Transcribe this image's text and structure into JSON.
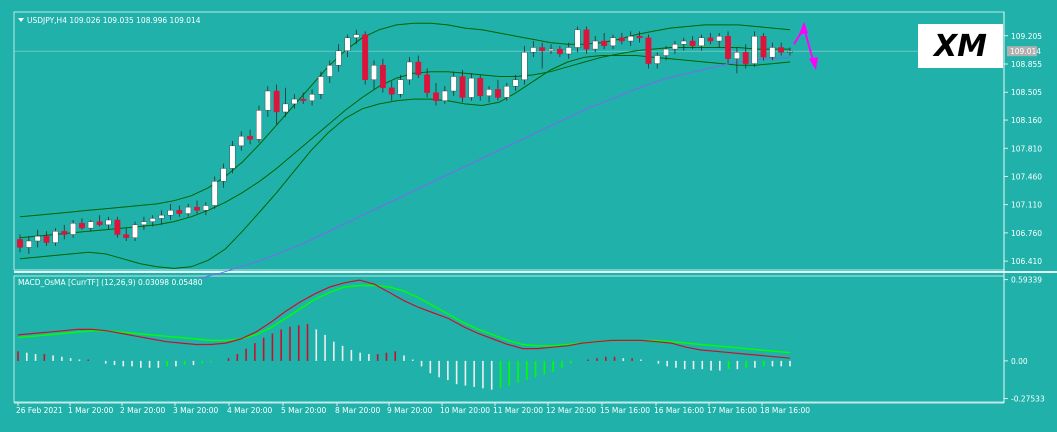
{
  "header": {
    "symbol_line": "USDJPY,H4  109.026 109.035 108.996 109.014",
    "indicator_line": "MACD_OsMA [CurrTF] (12,26,9) 0.03098 0.05480"
  },
  "logo": {
    "text": "XM"
  },
  "colors": {
    "background": "#20b2aa",
    "bull": "#ffffff",
    "bear": "#dc143c",
    "bands": "#006400",
    "ma": "#7b68ee",
    "macd": "#c8102e",
    "signal": "#00ff00",
    "arrow": "#ff00ff"
  },
  "chart_data": [
    {
      "type": "candlestick",
      "symbol": "USDJPY,H4",
      "ohlc_readout": [
        109.026,
        109.035,
        108.996,
        109.014
      ],
      "current_price": "109.014",
      "y_ticks": [
        "109.205",
        "108.855",
        "108.505",
        "108.160",
        "107.810",
        "107.460",
        "107.110",
        "106.760",
        "106.410"
      ],
      "ylim": [
        106.3,
        109.5
      ],
      "x_ticks": [
        "26 Feb 2021",
        "1 Mar 20:00",
        "2 Mar 20:00",
        "3 Mar 20:00",
        "4 Mar 20:00",
        "5 Mar 20:00",
        "8 Mar 20:00",
        "9 Mar 20:00",
        "10 Mar 20:00",
        "11 Mar 20:00",
        "12 Mar 20:00",
        "15 Mar 16:00",
        "16 Mar 16:00",
        "17 Mar 16:00",
        "18 Mar 16:00"
      ],
      "candles": [
        {
          "o": 106.68,
          "h": 106.74,
          "l": 106.52,
          "c": 106.58
        },
        {
          "o": 106.58,
          "h": 106.72,
          "l": 106.5,
          "c": 106.66
        },
        {
          "o": 106.66,
          "h": 106.8,
          "l": 106.58,
          "c": 106.72
        },
        {
          "o": 106.72,
          "h": 106.78,
          "l": 106.6,
          "c": 106.64
        },
        {
          "o": 106.64,
          "h": 106.82,
          "l": 106.6,
          "c": 106.78
        },
        {
          "o": 106.78,
          "h": 106.86,
          "l": 106.68,
          "c": 106.74
        },
        {
          "o": 106.74,
          "h": 106.92,
          "l": 106.7,
          "c": 106.88
        },
        {
          "o": 106.88,
          "h": 106.94,
          "l": 106.8,
          "c": 106.82
        },
        {
          "o": 106.82,
          "h": 106.92,
          "l": 106.78,
          "c": 106.9
        },
        {
          "o": 106.9,
          "h": 106.98,
          "l": 106.84,
          "c": 106.86
        },
        {
          "o": 106.86,
          "h": 106.96,
          "l": 106.8,
          "c": 106.92
        },
        {
          "o": 106.92,
          "h": 106.96,
          "l": 106.7,
          "c": 106.74
        },
        {
          "o": 106.74,
          "h": 106.82,
          "l": 106.66,
          "c": 106.7
        },
        {
          "o": 106.7,
          "h": 106.9,
          "l": 106.66,
          "c": 106.86
        },
        {
          "o": 106.86,
          "h": 106.96,
          "l": 106.8,
          "c": 106.9
        },
        {
          "o": 106.9,
          "h": 106.98,
          "l": 106.84,
          "c": 106.94
        },
        {
          "o": 106.94,
          "h": 107.04,
          "l": 106.86,
          "c": 106.98
        },
        {
          "o": 106.98,
          "h": 107.12,
          "l": 106.92,
          "c": 107.04
        },
        {
          "o": 107.04,
          "h": 107.1,
          "l": 106.96,
          "c": 107.0
        },
        {
          "o": 107.0,
          "h": 107.12,
          "l": 106.96,
          "c": 107.08
        },
        {
          "o": 107.08,
          "h": 107.16,
          "l": 107.0,
          "c": 107.04
        },
        {
          "o": 107.04,
          "h": 107.14,
          "l": 106.98,
          "c": 107.1
        },
        {
          "o": 107.1,
          "h": 107.46,
          "l": 107.06,
          "c": 107.4
        },
        {
          "o": 107.4,
          "h": 107.62,
          "l": 107.32,
          "c": 107.56
        },
        {
          "o": 107.56,
          "h": 107.9,
          "l": 107.5,
          "c": 107.84
        },
        {
          "o": 107.84,
          "h": 108.02,
          "l": 107.78,
          "c": 107.96
        },
        {
          "o": 107.96,
          "h": 108.04,
          "l": 107.86,
          "c": 107.92
        },
        {
          "o": 107.92,
          "h": 108.34,
          "l": 107.88,
          "c": 108.28
        },
        {
          "o": 108.28,
          "h": 108.58,
          "l": 108.2,
          "c": 108.52
        },
        {
          "o": 108.52,
          "h": 108.6,
          "l": 108.1,
          "c": 108.26
        },
        {
          "o": 108.26,
          "h": 108.56,
          "l": 108.2,
          "c": 108.36
        },
        {
          "o": 108.36,
          "h": 108.48,
          "l": 108.3,
          "c": 108.42
        },
        {
          "o": 108.42,
          "h": 108.5,
          "l": 108.36,
          "c": 108.4
        },
        {
          "o": 108.4,
          "h": 108.54,
          "l": 108.34,
          "c": 108.48
        },
        {
          "o": 108.48,
          "h": 108.76,
          "l": 108.42,
          "c": 108.7
        },
        {
          "o": 108.7,
          "h": 108.9,
          "l": 108.62,
          "c": 108.84
        },
        {
          "o": 108.84,
          "h": 109.1,
          "l": 108.76,
          "c": 109.02
        },
        {
          "o": 109.02,
          "h": 109.22,
          "l": 108.94,
          "c": 109.18
        },
        {
          "o": 109.18,
          "h": 109.28,
          "l": 109.1,
          "c": 109.22
        },
        {
          "o": 109.22,
          "h": 109.26,
          "l": 108.6,
          "c": 108.66
        },
        {
          "o": 108.66,
          "h": 108.9,
          "l": 108.54,
          "c": 108.84
        },
        {
          "o": 108.84,
          "h": 108.92,
          "l": 108.5,
          "c": 108.56
        },
        {
          "o": 108.56,
          "h": 108.64,
          "l": 108.4,
          "c": 108.48
        },
        {
          "o": 108.48,
          "h": 108.72,
          "l": 108.44,
          "c": 108.66
        },
        {
          "o": 108.66,
          "h": 108.94,
          "l": 108.6,
          "c": 108.88
        },
        {
          "o": 108.88,
          "h": 108.96,
          "l": 108.68,
          "c": 108.72
        },
        {
          "o": 108.72,
          "h": 108.8,
          "l": 108.44,
          "c": 108.5
        },
        {
          "o": 108.5,
          "h": 108.62,
          "l": 108.34,
          "c": 108.4
        },
        {
          "o": 108.4,
          "h": 108.58,
          "l": 108.36,
          "c": 108.52
        },
        {
          "o": 108.52,
          "h": 108.76,
          "l": 108.46,
          "c": 108.7
        },
        {
          "o": 108.7,
          "h": 108.78,
          "l": 108.38,
          "c": 108.44
        },
        {
          "o": 108.44,
          "h": 108.74,
          "l": 108.4,
          "c": 108.68
        },
        {
          "o": 108.68,
          "h": 108.72,
          "l": 108.4,
          "c": 108.46
        },
        {
          "o": 108.46,
          "h": 108.58,
          "l": 108.38,
          "c": 108.54
        },
        {
          "o": 108.54,
          "h": 108.66,
          "l": 108.4,
          "c": 108.44
        },
        {
          "o": 108.44,
          "h": 108.62,
          "l": 108.4,
          "c": 108.58
        },
        {
          "o": 108.58,
          "h": 108.72,
          "l": 108.52,
          "c": 108.66
        },
        {
          "o": 108.66,
          "h": 109.08,
          "l": 108.6,
          "c": 109.0
        },
        {
          "o": 109.0,
          "h": 109.14,
          "l": 108.94,
          "c": 109.06
        },
        {
          "o": 109.06,
          "h": 109.12,
          "l": 108.8,
          "c": 109.02
        },
        {
          "o": 109.02,
          "h": 109.1,
          "l": 108.98,
          "c": 109.04
        },
        {
          "o": 109.04,
          "h": 109.08,
          "l": 108.94,
          "c": 108.98
        },
        {
          "o": 108.98,
          "h": 109.12,
          "l": 108.92,
          "c": 109.06
        },
        {
          "o": 109.06,
          "h": 109.32,
          "l": 109.0,
          "c": 109.28
        },
        {
          "o": 109.28,
          "h": 109.32,
          "l": 108.98,
          "c": 109.04
        },
        {
          "o": 109.04,
          "h": 109.2,
          "l": 109.0,
          "c": 109.14
        },
        {
          "o": 109.14,
          "h": 109.24,
          "l": 109.04,
          "c": 109.08
        },
        {
          "o": 109.08,
          "h": 109.22,
          "l": 109.04,
          "c": 109.18
        },
        {
          "o": 109.18,
          "h": 109.24,
          "l": 109.1,
          "c": 109.14
        },
        {
          "o": 109.14,
          "h": 109.26,
          "l": 109.08,
          "c": 109.2
        },
        {
          "o": 109.2,
          "h": 109.26,
          "l": 109.12,
          "c": 109.18
        },
        {
          "o": 109.18,
          "h": 109.22,
          "l": 108.8,
          "c": 108.86
        },
        {
          "o": 108.86,
          "h": 109.0,
          "l": 108.8,
          "c": 108.96
        },
        {
          "o": 108.96,
          "h": 109.08,
          "l": 108.9,
          "c": 109.04
        },
        {
          "o": 109.04,
          "h": 109.14,
          "l": 108.98,
          "c": 109.1
        },
        {
          "o": 109.1,
          "h": 109.18,
          "l": 109.02,
          "c": 109.14
        },
        {
          "o": 109.14,
          "h": 109.2,
          "l": 109.04,
          "c": 109.08
        },
        {
          "o": 109.08,
          "h": 109.22,
          "l": 109.02,
          "c": 109.18
        },
        {
          "o": 109.18,
          "h": 109.24,
          "l": 109.1,
          "c": 109.14
        },
        {
          "o": 109.14,
          "h": 109.24,
          "l": 109.06,
          "c": 109.2
        },
        {
          "o": 109.2,
          "h": 109.26,
          "l": 108.86,
          "c": 108.92
        },
        {
          "o": 108.92,
          "h": 109.06,
          "l": 108.74,
          "c": 109.0
        },
        {
          "o": 109.0,
          "h": 109.1,
          "l": 108.8,
          "c": 108.86
        },
        {
          "o": 108.86,
          "h": 109.26,
          "l": 108.82,
          "c": 109.2
        },
        {
          "o": 109.2,
          "h": 109.24,
          "l": 108.9,
          "c": 108.94
        },
        {
          "o": 108.94,
          "h": 109.12,
          "l": 108.9,
          "c": 109.06
        },
        {
          "o": 109.06,
          "h": 109.12,
          "l": 108.96,
          "c": 109.0
        },
        {
          "o": 109.0,
          "h": 109.06,
          "l": 108.96,
          "c": 109.014
        }
      ],
      "bollinger_upper": [
        106.96,
        106.98,
        107.0,
        107.02,
        107.04,
        107.06,
        107.08,
        107.1,
        107.12,
        107.16,
        107.22,
        107.32,
        107.46,
        107.64,
        107.86,
        108.1,
        108.34,
        108.58,
        108.82,
        109.02,
        109.18,
        109.28,
        109.34,
        109.36,
        109.36,
        109.34,
        109.3,
        109.28,
        109.24,
        109.2,
        109.16,
        109.12,
        109.1,
        109.1,
        109.12,
        109.16,
        109.22,
        109.26,
        109.3,
        109.32,
        109.34,
        109.34,
        109.34,
        109.32,
        109.3,
        109.28
      ],
      "bollinger_middle": [
        106.7,
        106.72,
        106.74,
        106.76,
        106.78,
        106.8,
        106.82,
        106.84,
        106.86,
        106.9,
        106.96,
        107.04,
        107.14,
        107.26,
        107.4,
        107.56,
        107.74,
        107.92,
        108.1,
        108.28,
        108.44,
        108.58,
        108.68,
        108.74,
        108.76,
        108.76,
        108.74,
        108.72,
        108.7,
        108.7,
        108.72,
        108.76,
        108.82,
        108.88,
        108.94,
        108.98,
        109.02,
        109.04,
        109.06,
        109.06,
        109.06,
        109.06,
        109.06,
        109.04,
        109.04,
        109.04
      ],
      "bollinger_lower": [
        106.44,
        106.46,
        106.48,
        106.5,
        106.52,
        106.5,
        106.44,
        106.38,
        106.34,
        106.32,
        106.34,
        106.42,
        106.56,
        106.78,
        107.02,
        107.26,
        107.52,
        107.78,
        108.0,
        108.18,
        108.3,
        108.36,
        108.4,
        108.42,
        108.42,
        108.4,
        108.36,
        108.34,
        108.38,
        108.5,
        108.64,
        108.78,
        108.88,
        108.94,
        108.96,
        108.96,
        108.96,
        108.94,
        108.92,
        108.9,
        108.88,
        108.86,
        108.84,
        108.84,
        108.86,
        108.88
      ],
      "moving_average": [
        106.2,
        106.26,
        106.34,
        106.42,
        106.52,
        106.62,
        106.74,
        106.86,
        106.98,
        107.1,
        107.22,
        107.34,
        107.46,
        107.58,
        107.7,
        107.82,
        107.94,
        108.06,
        108.18,
        108.3,
        108.4,
        108.5,
        108.6,
        108.68,
        108.74,
        108.8,
        108.86,
        108.9,
        108.92,
        108.94
      ],
      "forecast_arrows": "magenta zigzag up then down at the last bar"
    },
    {
      "type": "bar",
      "name": "MACD_OsMA [CurrTF] (12,26,9)",
      "values_readout": [
        0.03098,
        0.0548
      ],
      "y_ticks": [
        "0.59339",
        "0.00",
        "-0.27533"
      ],
      "ylim": [
        -0.3,
        0.62
      ],
      "histogram": [
        0.07,
        0.06,
        0.05,
        0.05,
        0.04,
        0.03,
        0.02,
        0.01,
        0.01,
        0.0,
        -0.02,
        -0.03,
        -0.04,
        -0.04,
        -0.05,
        -0.05,
        -0.05,
        -0.04,
        -0.04,
        -0.03,
        -0.03,
        -0.02,
        -0.01,
        0.0,
        0.02,
        0.05,
        0.09,
        0.13,
        0.17,
        0.2,
        0.23,
        0.25,
        0.26,
        0.27,
        0.23,
        0.19,
        0.14,
        0.11,
        0.08,
        0.06,
        0.05,
        0.05,
        0.06,
        0.07,
        0.04,
        0.01,
        -0.04,
        -0.09,
        -0.12,
        -0.14,
        -0.17,
        -0.18,
        -0.19,
        -0.2,
        -0.21,
        -0.2,
        -0.18,
        -0.16,
        -0.14,
        -0.12,
        -0.1,
        -0.08,
        -0.05,
        -0.02,
        0.0,
        0.01,
        0.02,
        0.03,
        0.03,
        0.02,
        0.02,
        0.01,
        0.0,
        -0.02,
        -0.04,
        -0.05,
        -0.06,
        -0.06,
        -0.06,
        -0.07,
        -0.07,
        -0.06,
        -0.06,
        -0.05,
        -0.05,
        -0.04,
        -0.04,
        -0.04,
        -0.04
      ],
      "macd_line": [
        0.19,
        0.2,
        0.21,
        0.22,
        0.23,
        0.23,
        0.22,
        0.2,
        0.18,
        0.16,
        0.14,
        0.13,
        0.12,
        0.12,
        0.13,
        0.16,
        0.21,
        0.28,
        0.36,
        0.43,
        0.49,
        0.54,
        0.57,
        0.59,
        0.56,
        0.5,
        0.44,
        0.39,
        0.35,
        0.31,
        0.25,
        0.2,
        0.16,
        0.12,
        0.09,
        0.09,
        0.1,
        0.11,
        0.13,
        0.14,
        0.15,
        0.15,
        0.15,
        0.14,
        0.13,
        0.1,
        0.08,
        0.07,
        0.06,
        0.05,
        0.04,
        0.03,
        0.02
      ],
      "signal_line": [
        0.17,
        0.18,
        0.19,
        0.2,
        0.21,
        0.22,
        0.22,
        0.21,
        0.2,
        0.19,
        0.18,
        0.17,
        0.16,
        0.15,
        0.15,
        0.16,
        0.19,
        0.24,
        0.31,
        0.38,
        0.45,
        0.5,
        0.54,
        0.55,
        0.55,
        0.54,
        0.51,
        0.46,
        0.4,
        0.34,
        0.28,
        0.23,
        0.19,
        0.15,
        0.12,
        0.11,
        0.11,
        0.12,
        0.13,
        0.14,
        0.15,
        0.15,
        0.15,
        0.15,
        0.14,
        0.13,
        0.12,
        0.11,
        0.1,
        0.09,
        0.08,
        0.07,
        0.06
      ]
    }
  ]
}
